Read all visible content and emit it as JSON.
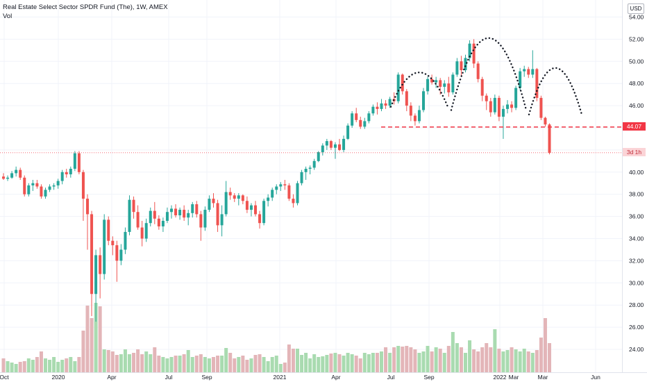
{
  "header": {
    "title": "Real Estate Select Sector SPDR Fund (The), 1W, AMEX",
    "volume_label": "Vol",
    "currency": "USD"
  },
  "price_axis": {
    "ticks": [
      "54.00",
      "52.00",
      "50.00",
      "48.00",
      "46.00",
      "44.00",
      "42.00",
      "40.00",
      "38.00",
      "36.00",
      "34.00",
      "32.00",
      "30.00",
      "28.00",
      "26.00",
      "24.00"
    ],
    "scale_labels": {
      "54.00": 54,
      "52.00": 52,
      "50.00": 50,
      "48.00": 48,
      "46.00": 46,
      "44.00": 44,
      "42.00": 42,
      "40.00": 40,
      "38.00": 38,
      "36.00": 36,
      "34.00": 34,
      "32.00": 32,
      "30.00": 30
    }
  },
  "time_axis": {
    "ticks": [
      "Oct",
      "2020",
      "Apr",
      "Jul",
      "Sep",
      "2021",
      "Apr",
      "Jul",
      "Sep",
      "2022",
      "Mar",
      "Mar",
      "Jun"
    ]
  },
  "tags": {
    "neckline_price": "44.07",
    "countdown": "3d 1h"
  },
  "colors": {
    "up": "#26a69a",
    "down": "#ef5350",
    "vol_up": "#a9dbb0",
    "vol_down": "#e3b5b8",
    "neckline": "#f23645",
    "pattern": "#131722",
    "grid": "#f0f3fa"
  },
  "chart_data": {
    "type": "candlestick",
    "title": "Real Estate Select Sector SPDR Fund (The), 1W, AMEX",
    "interval": "1W",
    "y_range": [
      23,
      55
    ],
    "neckline": 44.07,
    "last_close": 41.75,
    "annotations": [
      "head-and-shoulders pattern arcs",
      "neckline at 44.07"
    ],
    "candles": [
      [
        39.6,
        39.9,
        39.3,
        39.4
      ],
      [
        39.4,
        39.7,
        39.2,
        39.5
      ],
      [
        39.5,
        40.1,
        39.4,
        39.9
      ],
      [
        39.9,
        40.5,
        39.6,
        40.2
      ],
      [
        40.2,
        40.4,
        39.3,
        39.5
      ],
      [
        39.5,
        39.7,
        37.8,
        38.0
      ],
      [
        38.0,
        39.0,
        37.8,
        38.8
      ],
      [
        38.8,
        39.3,
        38.3,
        39.0
      ],
      [
        39.0,
        39.3,
        38.5,
        38.7
      ],
      [
        38.7,
        38.9,
        37.6,
        37.8
      ],
      [
        37.8,
        38.6,
        37.6,
        38.4
      ],
      [
        38.4,
        38.9,
        38.2,
        38.7
      ],
      [
        38.7,
        39.0,
        38.4,
        38.8
      ],
      [
        38.8,
        39.4,
        38.5,
        39.2
      ],
      [
        39.2,
        40.2,
        38.9,
        40.0
      ],
      [
        40.0,
        40.3,
        39.5,
        39.8
      ],
      [
        39.8,
        40.5,
        39.5,
        40.3
      ],
      [
        40.3,
        41.9,
        40.1,
        41.7
      ],
      [
        41.7,
        41.9,
        39.8,
        40.0
      ],
      [
        40.0,
        40.2,
        35.6,
        37.6
      ],
      [
        37.6,
        38.0,
        33.0,
        36.2
      ],
      [
        36.2,
        36.5,
        27.0,
        29.0
      ],
      [
        29.0,
        33.0,
        26.5,
        32.5
      ],
      [
        32.5,
        33.2,
        28.6,
        30.8
      ],
      [
        30.8,
        36.2,
        30.3,
        35.7
      ],
      [
        35.7,
        36.0,
        33.4,
        33.8
      ],
      [
        33.8,
        34.2,
        32.5,
        33.4
      ],
      [
        33.4,
        33.8,
        30.1,
        32.0
      ],
      [
        32.0,
        33.5,
        31.6,
        33.0
      ],
      [
        33.0,
        35.0,
        32.6,
        34.6
      ],
      [
        34.6,
        37.9,
        34.3,
        37.5
      ],
      [
        37.5,
        37.8,
        35.8,
        36.4
      ],
      [
        36.4,
        37.0,
        34.8,
        35.0
      ],
      [
        35.0,
        35.6,
        33.3,
        34.0
      ],
      [
        34.0,
        35.8,
        33.7,
        35.4
      ],
      [
        35.4,
        36.8,
        35.1,
        36.5
      ],
      [
        36.5,
        37.3,
        35.3,
        35.8
      ],
      [
        35.8,
        36.1,
        34.8,
        35.1
      ],
      [
        35.1,
        35.9,
        34.6,
        35.6
      ],
      [
        35.6,
        36.8,
        35.4,
        36.4
      ],
      [
        36.4,
        37.0,
        35.8,
        36.7
      ],
      [
        36.7,
        37.1,
        35.9,
        36.1
      ],
      [
        36.1,
        36.8,
        35.7,
        36.6
      ],
      [
        36.6,
        37.0,
        35.6,
        35.9
      ],
      [
        35.9,
        36.6,
        35.2,
        36.3
      ],
      [
        36.3,
        37.3,
        35.9,
        37.1
      ],
      [
        37.1,
        37.4,
        35.9,
        36.2
      ],
      [
        36.2,
        36.5,
        33.8,
        35.0
      ],
      [
        35.0,
        36.9,
        34.7,
        36.6
      ],
      [
        36.6,
        37.9,
        36.4,
        37.6
      ],
      [
        37.6,
        38.1,
        36.8,
        37.2
      ],
      [
        37.2,
        37.5,
        34.6,
        35.2
      ],
      [
        35.2,
        37.0,
        34.2,
        36.2
      ],
      [
        36.2,
        39.2,
        36.0,
        38.2
      ],
      [
        38.2,
        38.6,
        37.5,
        37.9
      ],
      [
        37.9,
        38.1,
        37.3,
        37.6
      ],
      [
        37.6,
        38.1,
        37.0,
        37.9
      ],
      [
        37.9,
        38.0,
        37.1,
        37.4
      ],
      [
        37.4,
        37.8,
        36.3,
        36.6
      ],
      [
        36.6,
        37.2,
        36.0,
        37.0
      ],
      [
        37.0,
        37.4,
        36.0,
        36.2
      ],
      [
        36.2,
        36.5,
        34.9,
        35.4
      ],
      [
        35.4,
        37.6,
        35.2,
        37.4
      ],
      [
        37.4,
        38.0,
        36.9,
        37.7
      ],
      [
        37.7,
        38.6,
        37.4,
        38.4
      ],
      [
        38.4,
        38.9,
        38.0,
        38.7
      ],
      [
        38.7,
        39.1,
        38.3,
        38.9
      ],
      [
        38.9,
        39.3,
        38.4,
        38.8
      ],
      [
        38.8,
        39.0,
        37.4,
        37.6
      ],
      [
        37.6,
        38.0,
        36.8,
        37.2
      ],
      [
        37.2,
        39.2,
        37.0,
        39.0
      ],
      [
        39.0,
        40.2,
        38.8,
        40.0
      ],
      [
        40.0,
        40.5,
        39.3,
        40.3
      ],
      [
        40.3,
        40.6,
        39.8,
        40.4
      ],
      [
        40.4,
        41.2,
        40.2,
        41.0
      ],
      [
        41.0,
        41.9,
        40.9,
        41.8
      ],
      [
        41.8,
        42.6,
        41.5,
        42.4
      ],
      [
        42.4,
        43.0,
        42.0,
        42.8
      ],
      [
        42.8,
        42.9,
        42.0,
        42.2
      ],
      [
        42.2,
        42.7,
        41.2,
        42.5
      ],
      [
        42.5,
        43.0,
        41.9,
        42.0
      ],
      [
        42.0,
        43.3,
        41.8,
        43.0
      ],
      [
        43.0,
        44.4,
        42.9,
        44.2
      ],
      [
        44.2,
        45.5,
        44.0,
        45.3
      ],
      [
        45.3,
        45.8,
        44.5,
        44.7
      ],
      [
        44.7,
        45.0,
        43.9,
        44.1
      ],
      [
        44.1,
        44.9,
        43.9,
        44.6
      ],
      [
        44.6,
        45.5,
        44.4,
        45.3
      ],
      [
        45.3,
        46.1,
        45.1,
        45.9
      ],
      [
        45.9,
        46.3,
        45.2,
        45.7
      ],
      [
        45.7,
        46.6,
        45.5,
        46.2
      ],
      [
        46.2,
        46.5,
        45.7,
        46.0
      ],
      [
        46.0,
        46.8,
        45.8,
        46.6
      ],
      [
        46.6,
        47.2,
        46.1,
        46.4
      ],
      [
        46.4,
        49.0,
        46.2,
        48.8
      ],
      [
        48.8,
        48.9,
        47.0,
        47.3
      ],
      [
        47.3,
        47.5,
        45.5,
        46.0
      ],
      [
        46.0,
        46.3,
        44.6,
        45.1
      ],
      [
        45.1,
        45.3,
        44.2,
        44.6
      ],
      [
        44.6,
        46.0,
        44.4,
        45.6
      ],
      [
        45.6,
        47.6,
        45.4,
        47.3
      ],
      [
        47.3,
        48.6,
        47.0,
        48.4
      ],
      [
        48.4,
        48.8,
        47.9,
        48.1
      ],
      [
        48.1,
        48.6,
        47.6,
        48.3
      ],
      [
        48.3,
        48.5,
        47.0,
        47.7
      ],
      [
        47.7,
        48.3,
        47.1,
        48.0
      ],
      [
        48.0,
        48.6,
        46.8,
        47.2
      ],
      [
        47.2,
        49.0,
        47.0,
        48.8
      ],
      [
        48.8,
        50.3,
        48.6,
        50.0
      ],
      [
        50.0,
        50.5,
        48.7,
        49.2
      ],
      [
        49.2,
        50.6,
        49.0,
        50.3
      ],
      [
        50.3,
        51.9,
        50.0,
        51.6
      ],
      [
        51.6,
        52.0,
        49.4,
        49.8
      ],
      [
        49.8,
        50.0,
        48.1,
        48.4
      ],
      [
        48.4,
        48.6,
        46.4,
        46.9
      ],
      [
        46.9,
        47.1,
        45.6,
        46.4
      ],
      [
        46.4,
        46.7,
        45.0,
        45.4
      ],
      [
        45.4,
        47.0,
        45.2,
        46.7
      ],
      [
        46.7,
        46.9,
        44.6,
        45.0
      ],
      [
        45.0,
        46.0,
        43.0,
        45.7
      ],
      [
        45.7,
        46.5,
        45.3,
        46.1
      ],
      [
        46.1,
        46.4,
        45.4,
        45.8
      ],
      [
        45.8,
        47.8,
        45.6,
        47.6
      ],
      [
        47.6,
        49.4,
        47.4,
        49.1
      ],
      [
        49.1,
        49.6,
        48.6,
        49.3
      ],
      [
        49.3,
        49.5,
        48.5,
        48.8
      ],
      [
        48.8,
        51.0,
        48.5,
        49.3
      ],
      [
        49.3,
        49.4,
        46.4,
        46.7
      ],
      [
        46.7,
        46.9,
        44.7,
        44.9
      ],
      [
        44.9,
        45.0,
        44.1,
        44.3
      ],
      [
        44.3,
        44.4,
        41.6,
        41.75
      ]
    ],
    "volume_relative": [
      0.2,
      0.16,
      0.14,
      0.12,
      0.15,
      0.16,
      0.2,
      0.18,
      0.22,
      0.3,
      0.2,
      0.18,
      0.22,
      0.15,
      0.18,
      0.2,
      0.22,
      0.16,
      0.22,
      0.6,
      0.96,
      0.78,
      1.0,
      0.95,
      0.33,
      0.32,
      0.3,
      0.25,
      0.26,
      0.33,
      0.26,
      0.28,
      0.33,
      0.26,
      0.3,
      0.26,
      0.36,
      0.24,
      0.22,
      0.2,
      0.22,
      0.24,
      0.24,
      0.26,
      0.32,
      0.22,
      0.24,
      0.26,
      0.22,
      0.2,
      0.22,
      0.24,
      0.24,
      0.35,
      0.28,
      0.2,
      0.22,
      0.24,
      0.18,
      0.2,
      0.25,
      0.26,
      0.22,
      0.16,
      0.22,
      0.24,
      0.12,
      0.14,
      0.4,
      0.34,
      0.34,
      0.25,
      0.28,
      0.2,
      0.26,
      0.22,
      0.23,
      0.25,
      0.27,
      0.28,
      0.26,
      0.24,
      0.28,
      0.26,
      0.24,
      0.2,
      0.28,
      0.26,
      0.28,
      0.28,
      0.3,
      0.36,
      0.28,
      0.36,
      0.38,
      0.37,
      0.38,
      0.36,
      0.33,
      0.28,
      0.3,
      0.38,
      0.3,
      0.36,
      0.34,
      0.28,
      0.38,
      0.58,
      0.42,
      0.36,
      0.28,
      0.46,
      0.33,
      0.3,
      0.36,
      0.42,
      0.36,
      0.62,
      0.34,
      0.3,
      0.32,
      0.36,
      0.33,
      0.3,
      0.34,
      0.3,
      0.28,
      0.32,
      0.5,
      0.78,
      0.42
    ]
  }
}
